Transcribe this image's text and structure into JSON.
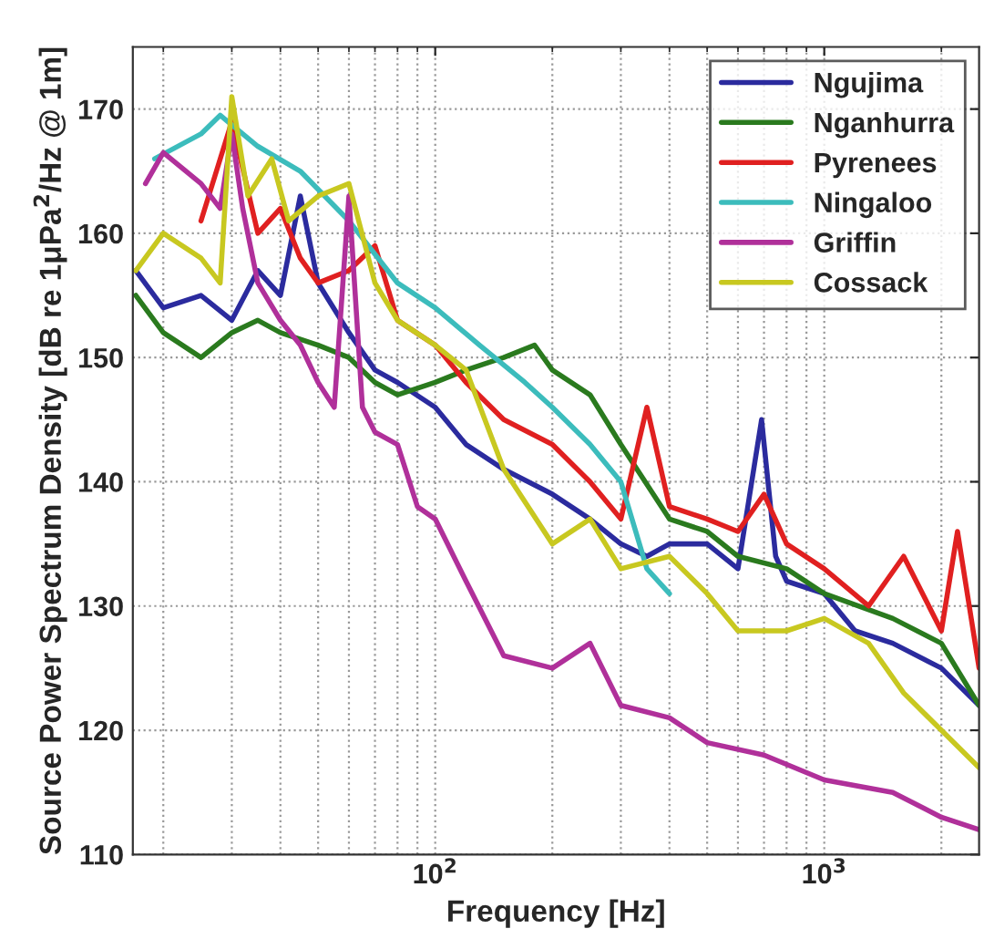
{
  "chart_data": {
    "type": "line",
    "xlabel": "Frequency [Hz]",
    "ylabel": "Source Power Spectrum Density [dB re 1μPa$^{2}$/Hz @ 1m]",
    "log": "x",
    "xlim": [
      16.7,
      2500
    ],
    "ylim": [
      110,
      175
    ],
    "xticks": [
      {
        "value": 100,
        "label": "10$^{2}$"
      },
      {
        "value": 1000,
        "label": "10$^{3}$"
      }
    ],
    "yticks": [
      110,
      120,
      130,
      140,
      150,
      160,
      170
    ],
    "grid": true,
    "legend": "top right",
    "line_style": "solid",
    "marker": "none",
    "series": [
      {
        "name": "Ngujima",
        "color": "#2b2b9e",
        "x": [
          17,
          20,
          25,
          30,
          35,
          40,
          45,
          50,
          60,
          70,
          80,
          100,
          120,
          150,
          200,
          250,
          300,
          350,
          400,
          500,
          600,
          690,
          750,
          800,
          1000,
          1200,
          1500,
          2000,
          2500
        ],
        "values": [
          157,
          154,
          155,
          153,
          157,
          155,
          163,
          156,
          152,
          149,
          148,
          146,
          143,
          141,
          139,
          137,
          135,
          134,
          135,
          135,
          133,
          145,
          134,
          132,
          131,
          128,
          127,
          125,
          122
        ]
      },
      {
        "name": "Nganhurra",
        "color": "#2a7a1e",
        "x": [
          17,
          20,
          25,
          30,
          35,
          40,
          50,
          60,
          70,
          80,
          100,
          120,
          150,
          180,
          200,
          250,
          300,
          400,
          500,
          600,
          800,
          1000,
          1500,
          2000,
          2500
        ],
        "values": [
          155,
          152,
          150,
          152,
          153,
          152,
          151,
          150,
          148,
          147,
          148,
          149,
          150,
          151,
          149,
          147,
          143,
          137,
          136,
          134,
          133,
          131,
          129,
          127,
          122
        ]
      },
      {
        "name": "Pyrenees",
        "color": "#e02020",
        "x": [
          25,
          30,
          35,
          40,
          45,
          50,
          60,
          70,
          80,
          100,
          120,
          150,
          200,
          250,
          300,
          350,
          400,
          500,
          600,
          700,
          800,
          1000,
          1300,
          1600,
          2000,
          2200,
          2500
        ],
        "values": [
          161,
          169,
          160,
          162,
          158,
          156,
          157,
          159,
          153,
          151,
          148,
          145,
          143,
          140,
          137,
          146,
          138,
          137,
          136,
          139,
          135,
          133,
          130,
          134,
          128,
          136,
          125
        ]
      },
      {
        "name": "Ningaloo",
        "color": "#3cbcbc",
        "x": [
          19,
          25,
          28,
          35,
          45,
          60,
          80,
          100,
          130,
          170,
          200,
          250,
          300,
          350,
          400
        ],
        "values": [
          166,
          168,
          169.5,
          167,
          165,
          161,
          156,
          154,
          151,
          148,
          146,
          143,
          140,
          133,
          131
        ]
      },
      {
        "name": "Griffin",
        "color": "#b0309a",
        "x": [
          18,
          20,
          25,
          28,
          30,
          32,
          35,
          40,
          45,
          50,
          55,
          60,
          65,
          70,
          80,
          90,
          100,
          120,
          150,
          200,
          250,
          300,
          400,
          500,
          700,
          1000,
          1500,
          2000,
          2500
        ],
        "values": [
          164,
          166.5,
          164,
          162,
          168,
          162,
          156,
          153,
          151,
          148,
          146,
          163,
          146,
          144,
          143,
          138,
          137,
          132,
          126,
          125,
          127,
          122,
          121,
          119,
          118,
          116,
          115,
          113,
          112
        ]
      },
      {
        "name": "Cossack",
        "color": "#c8c820",
        "x": [
          17,
          20,
          25,
          28,
          30,
          33,
          38,
          42,
          50,
          60,
          70,
          80,
          100,
          120,
          150,
          200,
          250,
          300,
          400,
          500,
          600,
          800,
          1000,
          1300,
          1600,
          2000,
          2500
        ],
        "values": [
          157,
          160,
          158,
          156,
          171,
          163,
          166,
          161,
          163,
          164,
          156,
          153,
          151,
          149,
          141,
          135,
          137,
          133,
          134,
          131,
          128,
          128,
          129,
          127,
          123,
          120,
          117
        ]
      }
    ]
  }
}
